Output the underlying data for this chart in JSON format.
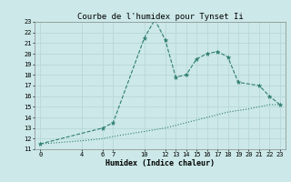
{
  "title": "Courbe de l'humidex pour Tynset Ii",
  "xlabel": "Humidex (Indice chaleur)",
  "bg_color": "#cce8e8",
  "grid_color": "#b8d8d8",
  "line_color": "#2e7d72",
  "upper_x": [
    0,
    6,
    7,
    10,
    11,
    12,
    13,
    14,
    15,
    16,
    17,
    18,
    19,
    21,
    22,
    23
  ],
  "upper_y": [
    11.5,
    13.0,
    13.5,
    21.5,
    23.2,
    21.3,
    17.8,
    18.0,
    19.5,
    20.0,
    20.2,
    19.7,
    17.3,
    17.0,
    16.0,
    15.2
  ],
  "lower_x": [
    0,
    4,
    6,
    7,
    12,
    14,
    16,
    18,
    20,
    22,
    23
  ],
  "lower_y": [
    11.5,
    11.8,
    12.0,
    12.2,
    13.0,
    13.5,
    14.0,
    14.5,
    14.8,
    15.2,
    15.2
  ],
  "xlim": [
    -0.5,
    23.5
  ],
  "ylim": [
    11,
    23
  ],
  "xticks": [
    0,
    4,
    6,
    7,
    10,
    12,
    13,
    14,
    15,
    16,
    17,
    18,
    19,
    20,
    21,
    22,
    23
  ],
  "yticks": [
    11,
    12,
    13,
    14,
    15,
    16,
    17,
    18,
    19,
    20,
    21,
    22,
    23
  ],
  "title_fontsize": 6.5,
  "label_fontsize": 6,
  "tick_fontsize": 5
}
